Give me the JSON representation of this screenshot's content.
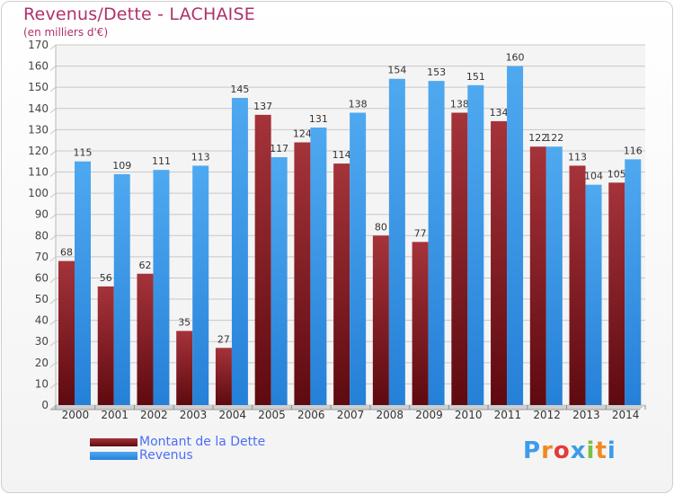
{
  "chart_data": {
    "type": "bar",
    "title": "Revenus/Dette - LACHAISE",
    "subtitle": "(en milliers d'€)",
    "categories": [
      "2000",
      "2001",
      "2002",
      "2003",
      "2004",
      "2005",
      "2006",
      "2007",
      "2008",
      "2009",
      "2010",
      "2011",
      "2012",
      "2013",
      "2014"
    ],
    "series": [
      {
        "name": "Montant de la Dette",
        "color": "#7a1a1f",
        "values": [
          68,
          56,
          62,
          35,
          27,
          137,
          124,
          114,
          80,
          77,
          138,
          134,
          122,
          113,
          105
        ]
      },
      {
        "name": "Revenus",
        "color": "#3d9be9",
        "values": [
          115,
          109,
          111,
          113,
          145,
          117,
          131,
          138,
          154,
          153,
          151,
          160,
          122,
          104,
          116
        ]
      }
    ],
    "ylim": [
      0,
      170
    ],
    "yticks": [
      0,
      10,
      20,
      30,
      40,
      50,
      60,
      70,
      80,
      90,
      100,
      110,
      120,
      130,
      140,
      150,
      160,
      170
    ],
    "grid": true,
    "legend_position": "bottom-left"
  },
  "logo": {
    "text": "Proxiti",
    "letters": [
      "P",
      "r",
      "o",
      "x",
      "i",
      "t",
      "i"
    ],
    "colors": [
      "#3d9be9",
      "#f08a24",
      "#e23b3b",
      "#3d9be9",
      "#7ac143",
      "#f08a24",
      "#3d9be9"
    ]
  }
}
